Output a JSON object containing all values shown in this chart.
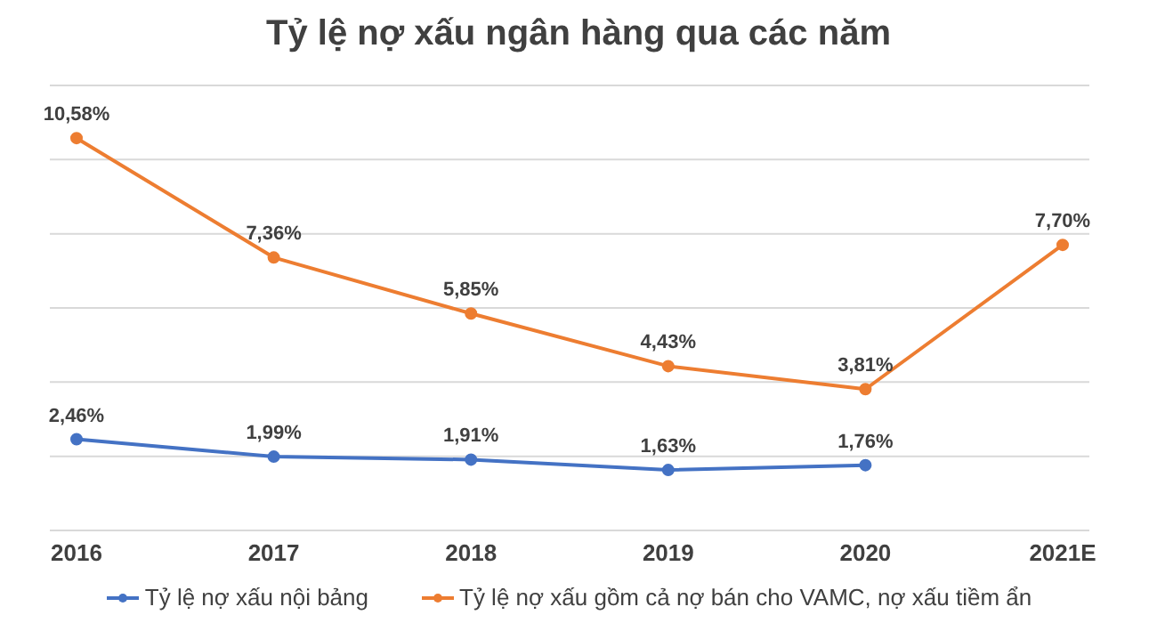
{
  "chart_data": {
    "type": "line",
    "title": "Tỷ lệ nợ xấu ngân hàng qua các năm",
    "categories": [
      "2016",
      "2017",
      "2018",
      "2019",
      "2020",
      "2021E"
    ],
    "series": [
      {
        "name": "Tỷ lệ nợ xấu nội bảng",
        "color": "#4472c4",
        "values": [
          2.46,
          1.99,
          1.91,
          1.63,
          1.76,
          null
        ],
        "value_labels": [
          "2,46%",
          "1,99%",
          "1,91%",
          "1,63%",
          "1,76%",
          null
        ]
      },
      {
        "name": "Tỷ lệ nợ xấu gồm cả nợ bán cho VAMC, nợ xấu tiềm ẩn",
        "color": "#ed7d31",
        "values": [
          10.58,
          7.36,
          5.85,
          4.43,
          3.81,
          7.7
        ],
        "value_labels": [
          "10,58%",
          "7,36%",
          "5,85%",
          "4,43%",
          "3,81%",
          "7,70%"
        ]
      }
    ],
    "ylim": [
      0,
      12
    ],
    "yticks": [
      {
        "value": 0,
        "label": null
      },
      {
        "value": 2,
        "label": null
      },
      {
        "value": 4,
        "label": null
      },
      {
        "value": 6,
        "label": null
      },
      {
        "value": 8,
        "label": null
      },
      {
        "value": 10,
        "label": null
      },
      {
        "value": 12,
        "label": null
      }
    ],
    "tick_labels": "x",
    "grid": "y",
    "legend": "bottom",
    "marker": "circle",
    "line_style": "solid"
  }
}
